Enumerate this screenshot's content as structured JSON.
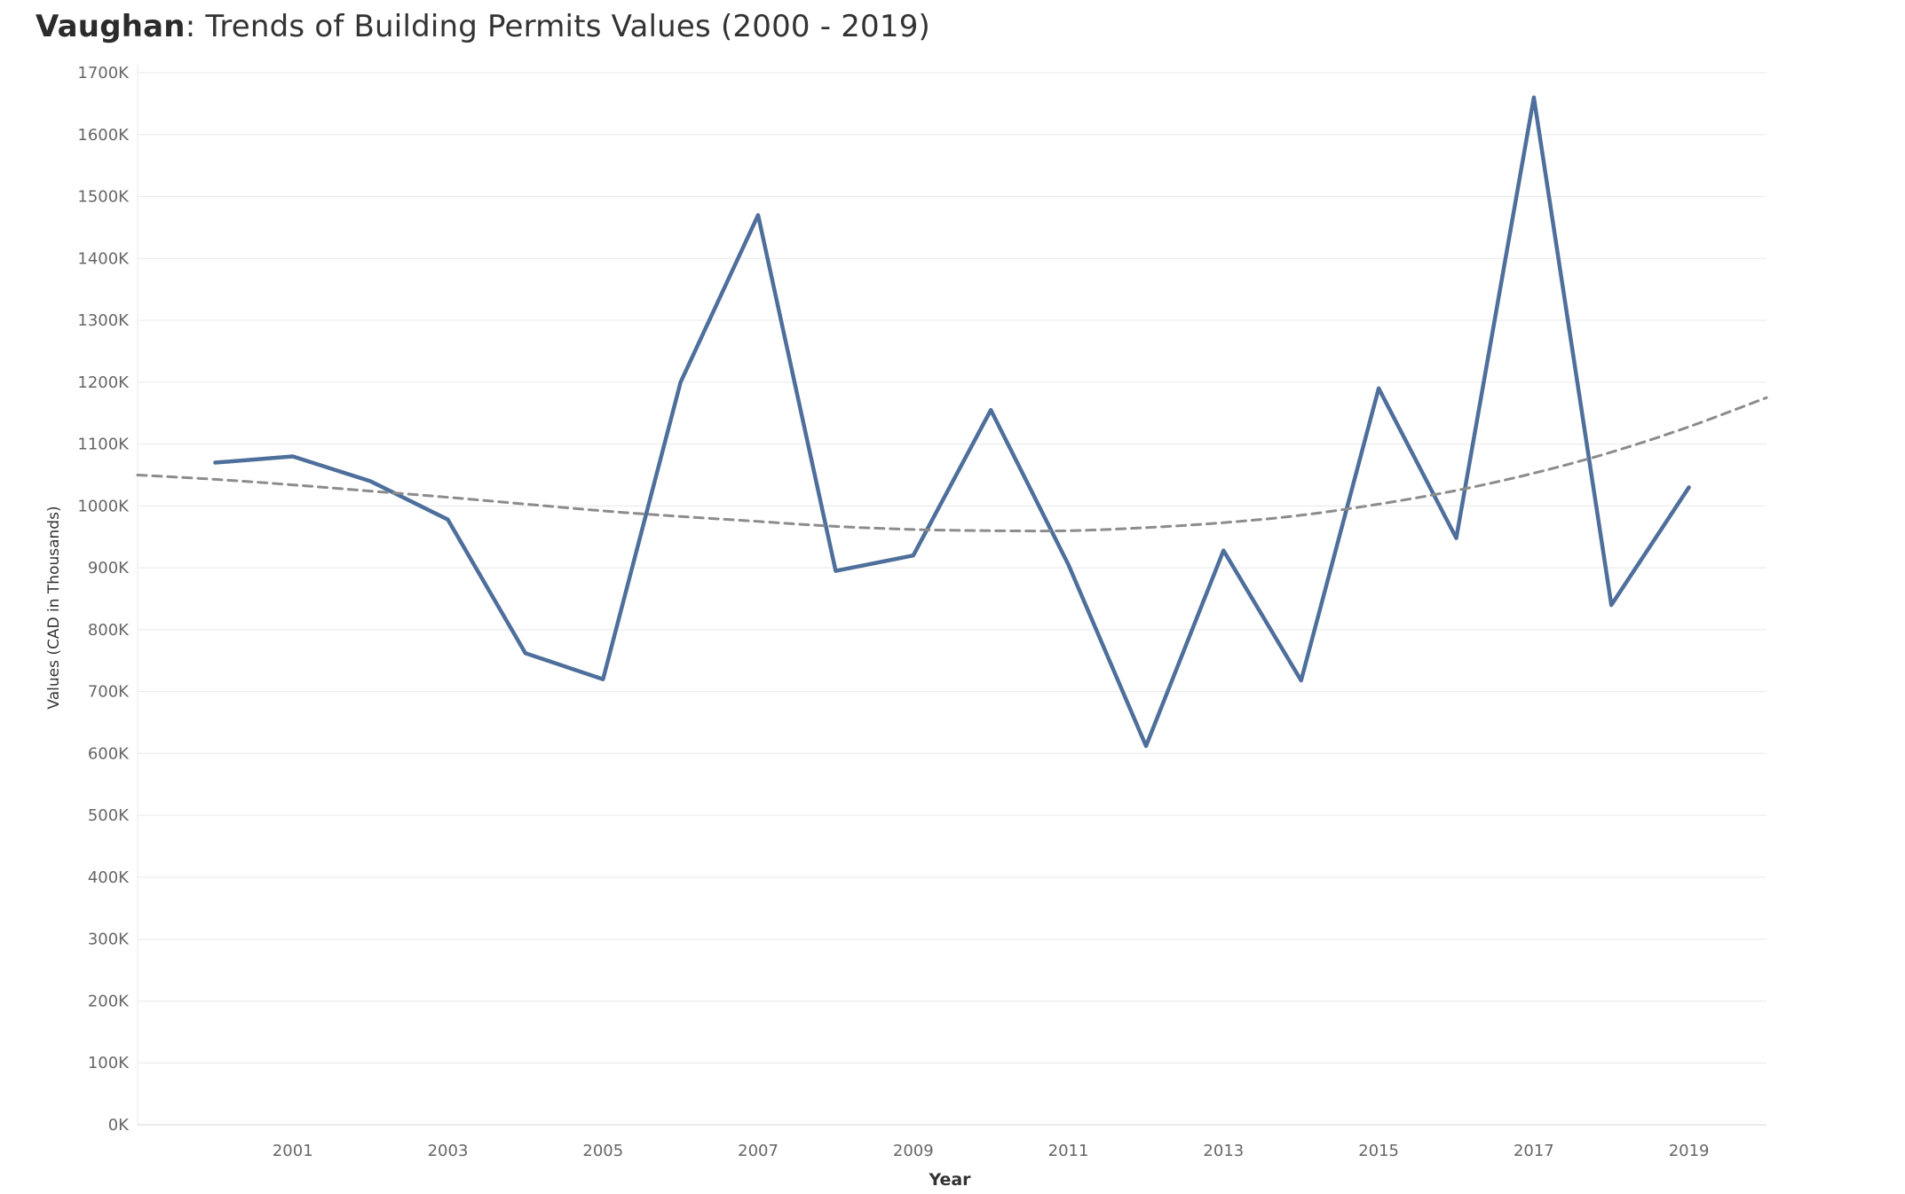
{
  "title_bold": "Vaughan",
  "title_rest": ": Trends of Building Permits Values (2000 - 2019)",
  "chart_data": {
    "type": "line",
    "title": "Vaughan: Trends of Building Permits Values (2000 - 2019)",
    "xlabel": "Year",
    "ylabel": "Values (CAD in Thousands)",
    "x": [
      2000,
      2001,
      2002,
      2003,
      2004,
      2005,
      2006,
      2007,
      2008,
      2009,
      2010,
      2011,
      2012,
      2013,
      2014,
      2015,
      2016,
      2017,
      2018,
      2019
    ],
    "series": [
      {
        "values": [
          1070000,
          1080000,
          1040000,
          978000,
          762000,
          720000,
          1200000,
          1470000,
          895000,
          920000,
          1155000,
          905000,
          612000,
          928000,
          718000,
          1190000,
          948000,
          1660000,
          840000,
          1030000
        ],
        "color": "#4e6f9b",
        "style": "solid"
      },
      {
        "trend": true,
        "x": [
          1999,
          2000,
          2001,
          2002,
          2003,
          2004,
          2005,
          2006,
          2007,
          2008,
          2009,
          2010,
          2011,
          2012,
          2013,
          2014,
          2015,
          2016,
          2017,
          2018,
          2019,
          2020
        ],
        "values": [
          1050000,
          1043000,
          1034000,
          1024000,
          1014000,
          1003000,
          992000,
          983000,
          975000,
          967000,
          962000,
          960000,
          960000,
          965000,
          973000,
          985000,
          1003000,
          1025000,
          1053000,
          1087000,
          1128000,
          1175000
        ],
        "color": "#8c8c8c",
        "style": "dashed"
      }
    ],
    "xticks": [
      "2001",
      "2003",
      "2005",
      "2007",
      "2009",
      "2011",
      "2013",
      "2015",
      "2017",
      "2019"
    ],
    "yticks": [
      "0K",
      "100K",
      "200K",
      "300K",
      "400K",
      "500K",
      "600K",
      "700K",
      "800K",
      "900K",
      "1000K",
      "1100K",
      "1200K",
      "1300K",
      "1400K",
      "1500K",
      "1600K",
      "1700K"
    ],
    "xlim": [
      1999,
      2020
    ],
    "ylim": [
      0,
      1700000
    ],
    "grid": true,
    "legend": "none"
  }
}
